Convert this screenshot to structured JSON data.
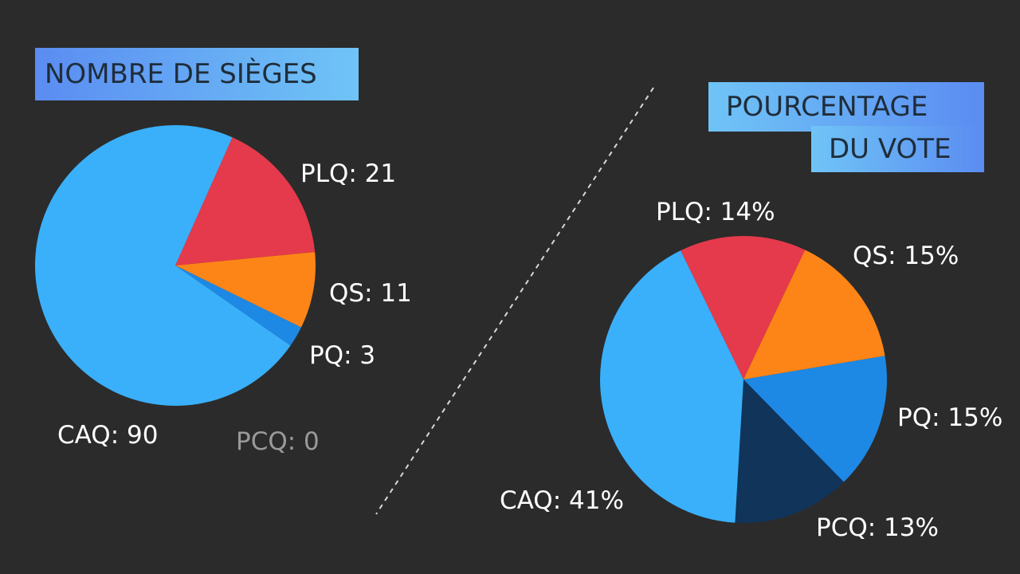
{
  "titles": {
    "seats": "NOMBRE DE SIÈGES",
    "vote_line1": "POURCENTAGE",
    "vote_line2": "DU VOTE"
  },
  "chart_data": [
    {
      "type": "pie",
      "title": "NOMBRE DE SIÈGES",
      "slices": [
        {
          "party": "CAQ",
          "value": 90,
          "label": "CAQ: 90",
          "color": "#3ab0fa"
        },
        {
          "party": "PLQ",
          "value": 21,
          "label": "PLQ: 21",
          "color": "#e53a4b"
        },
        {
          "party": "QS",
          "value": 11,
          "label": "QS: 11",
          "color": "#fd8517"
        },
        {
          "party": "PQ",
          "value": 3,
          "label": "PQ: 3",
          "color": "#1e88e5"
        },
        {
          "party": "PCQ",
          "value": 0,
          "label": "PCQ: 0",
          "color": "#9a9a9a"
        }
      ]
    },
    {
      "type": "pie",
      "title": "POURCENTAGE DU VOTE",
      "slices": [
        {
          "party": "CAQ",
          "value": 41,
          "label": "CAQ: 41%",
          "color": "#3ab0fa"
        },
        {
          "party": "PLQ",
          "value": 14,
          "label": "PLQ: 14%",
          "color": "#e53a4b"
        },
        {
          "party": "QS",
          "value": 15,
          "label": "QS: 15%",
          "color": "#fd8517"
        },
        {
          "party": "PQ",
          "value": 15,
          "label": "PQ: 15%",
          "color": "#1e88e5"
        },
        {
          "party": "PCQ",
          "value": 13,
          "label": "PCQ: 13%",
          "color": "#10345a"
        }
      ]
    }
  ]
}
